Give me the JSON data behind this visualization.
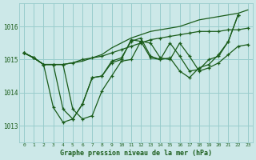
{
  "bg_color": "#cce8e8",
  "grid_color": "#99cccc",
  "line_color": "#1a5c1a",
  "title": "Graphe pression niveau de la mer (hPa)",
  "ylim": [
    1012.5,
    1016.7
  ],
  "yticks": [
    1013,
    1014,
    1015,
    1016
  ],
  "xlim": [
    -0.5,
    23.5
  ],
  "xticks": [
    0,
    1,
    2,
    3,
    4,
    5,
    6,
    7,
    8,
    9,
    10,
    11,
    12,
    13,
    14,
    15,
    16,
    17,
    18,
    19,
    20,
    21,
    22,
    23
  ],
  "line1": [
    1015.2,
    1015.05,
    1014.85,
    1014.85,
    1014.85,
    1014.9,
    1015.0,
    1015.05,
    1015.1,
    1015.2,
    1015.3,
    1015.4,
    1015.5,
    1015.6,
    1015.65,
    1015.7,
    1015.75,
    1015.8,
    1015.85,
    1015.85,
    1015.85,
    1015.9,
    1015.9,
    1015.95
  ],
  "line2": [
    1015.2,
    1015.05,
    1014.85,
    1013.55,
    1013.1,
    1013.2,
    1013.65,
    1014.45,
    1014.5,
    1014.9,
    1015.0,
    1015.6,
    1015.55,
    1015.05,
    1015.0,
    1015.05,
    1014.65,
    1014.45,
    1014.75,
    1014.85,
    1015.15,
    1015.55,
    1016.35
  ],
  "line3": [
    1015.2,
    1015.05,
    1014.85,
    1014.85,
    1013.5,
    1013.2,
    1013.65,
    1014.45,
    1014.5,
    1014.95,
    1015.05,
    1015.55,
    1015.65,
    1015.1,
    1015.0,
    1015.5,
    1015.1,
    1014.65,
    1014.7,
    1015.0,
    1015.1,
    1015.55,
    1016.35
  ],
  "line4": [
    1015.2,
    1015.05,
    1014.85,
    1014.85,
    1014.85,
    1013.5,
    1013.2,
    1013.3,
    1014.05,
    1014.5,
    1014.95,
    1015.0,
    1015.55,
    1015.5,
    1015.05,
    1015.0,
    1015.5,
    1015.1,
    1014.65,
    1014.75,
    1014.9,
    1015.15,
    1015.4,
    1015.45
  ],
  "line5": [
    1015.2,
    1015.05,
    1014.85,
    1014.85,
    1014.85,
    1014.9,
    1014.95,
    1015.05,
    1015.15,
    1015.35,
    1015.5,
    1015.65,
    1015.75,
    1015.85,
    1015.9,
    1015.95,
    1016.0,
    1016.1,
    1016.2,
    1016.25,
    1016.3,
    1016.35,
    1016.4,
    1016.5
  ]
}
